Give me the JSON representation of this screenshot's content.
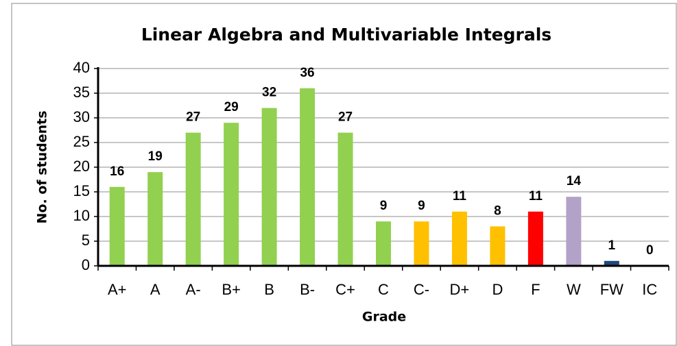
{
  "chart_data": {
    "type": "bar",
    "title": "Linear Algebra and Multivariable Integrals",
    "x_label": "Grade",
    "y_label": "No. of students",
    "categories": [
      "A+",
      "A",
      "A-",
      "B+",
      "B",
      "B-",
      "C+",
      "C",
      "C-",
      "D+",
      "D",
      "F",
      "W",
      "FW",
      "IC"
    ],
    "values": [
      16,
      19,
      27,
      29,
      32,
      36,
      27,
      9,
      9,
      11,
      8,
      11,
      14,
      1,
      0
    ],
    "colors": [
      "#92d050",
      "#92d050",
      "#92d050",
      "#92d050",
      "#92d050",
      "#92d050",
      "#92d050",
      "#92d050",
      "#ffc000",
      "#ffc000",
      "#ffc000",
      "#ff0000",
      "#b3a2c7",
      "#1f497d",
      "#1f497d"
    ],
    "ylim": [
      0,
      40
    ],
    "yticks": [
      0,
      5,
      10,
      15,
      20,
      25,
      30,
      35,
      40
    ],
    "grid": true
  }
}
